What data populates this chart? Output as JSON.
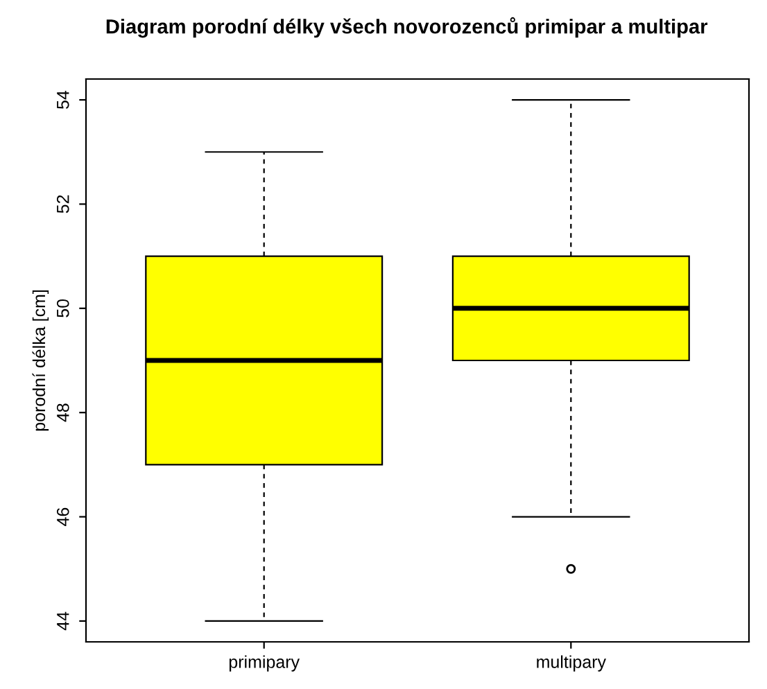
{
  "chart_data": {
    "type": "box",
    "title": "Diagram porodní délky všech novorozenců primipar a multipar",
    "ylabel": "porodní délka [cm]",
    "categories": [
      "primipary",
      "multipary"
    ],
    "boxes": [
      {
        "low": 44,
        "q1": 47,
        "median": 49,
        "q3": 51,
        "high": 53
      },
      {
        "low": 46,
        "q1": 49,
        "median": 50,
        "q3": 51,
        "high": 54,
        "outliers": [
          45
        ]
      }
    ],
    "color": "#ffff00",
    "ylim": [
      43.6,
      54.4
    ],
    "yticks": [
      44,
      46,
      48,
      50,
      52,
      54
    ],
    "grid": false
  }
}
